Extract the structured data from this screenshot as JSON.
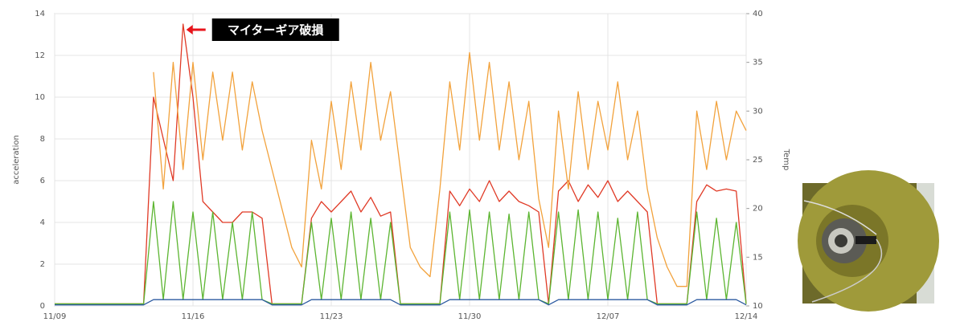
{
  "chart_data": {
    "type": "line",
    "y_label": "acceleration",
    "y2_label": "Temp",
    "annotation": "マイターギア破損",
    "annotation_color": "#e8141b",
    "annotation_x": 6.5,
    "annotation_y": 13.5,
    "grid": true,
    "x": [
      0,
      0.5,
      1,
      1.5,
      2,
      2.5,
      3,
      3.5,
      4,
      4.5,
      5,
      5.5,
      6,
      6.5,
      7,
      7.5,
      8,
      8.5,
      9,
      9.5,
      10,
      10.5,
      11,
      11.5,
      12,
      12.5,
      13,
      13.5,
      14,
      14.5,
      15,
      15.5,
      16,
      16.5,
      17,
      17.5,
      18,
      18.5,
      19,
      19.5,
      20,
      20.5,
      21,
      21.5,
      22,
      22.5,
      23,
      23.5,
      24,
      24.5,
      25,
      25.5,
      26,
      26.5,
      27,
      27.5,
      28,
      28.5,
      29,
      29.5,
      30,
      30.5,
      31,
      31.5,
      32,
      32.5,
      33,
      33.5,
      34,
      34.5,
      35
    ],
    "xlim": [
      0,
      35
    ],
    "xticks": [
      {
        "value": 0,
        "label": "11/09"
      },
      {
        "value": 7,
        "label": "11/16"
      },
      {
        "value": 14,
        "label": "11/23"
      },
      {
        "value": 21,
        "label": "11/30"
      },
      {
        "value": 28,
        "label": "12/07"
      },
      {
        "value": 35,
        "label": "12/14"
      }
    ],
    "ylim": [
      0,
      14
    ],
    "yticks": [
      0,
      2,
      4,
      6,
      8,
      10,
      12,
      14
    ],
    "y2lim": [
      10,
      40
    ],
    "y2ticks": [
      10,
      15,
      20,
      25,
      30,
      35,
      40
    ],
    "series": [
      {
        "color": "#e03a26",
        "values": [
          0.1,
          0.1,
          0.1,
          0.1,
          0.1,
          0.1,
          0.1,
          0.1,
          0.1,
          0.1,
          10,
          8,
          6,
          13.5,
          10,
          5,
          4.5,
          4,
          4,
          4.5,
          4.5,
          4.2,
          0.1,
          0.1,
          0.1,
          0.1,
          4.2,
          5,
          4.5,
          5,
          5.5,
          4.5,
          5.2,
          4.3,
          4.5,
          0.1,
          0.1,
          0.1,
          0.1,
          0.1,
          5.5,
          4.8,
          5.6,
          5,
          6,
          5,
          5.5,
          5,
          4.8,
          4.5,
          0.1,
          5.5,
          6,
          5,
          5.8,
          5.2,
          6,
          5,
          5.5,
          5,
          4.5,
          0.1,
          0.1,
          0.1,
          0.1,
          5,
          5.8,
          5.5,
          5.6,
          5.5,
          0.1
        ]
      },
      {
        "color": "#5cb531",
        "values": [
          0.1,
          0.1,
          0.1,
          0.1,
          0.1,
          0.1,
          0.1,
          0.1,
          0.1,
          0.1,
          5,
          0.3,
          5,
          0.3,
          4.5,
          0.3,
          4.5,
          0.3,
          4,
          0.3,
          4.5,
          0.3,
          0.1,
          0.1,
          0.1,
          0.1,
          4,
          0.3,
          4.2,
          0.3,
          4.5,
          0.3,
          4.2,
          0.3,
          4,
          0.1,
          0.1,
          0.1,
          0.1,
          0.1,
          4.5,
          0.3,
          4.6,
          0.3,
          4.5,
          0.3,
          4.4,
          0.3,
          4.5,
          0.3,
          0.1,
          4.5,
          0.3,
          4.6,
          0.3,
          4.5,
          0.3,
          4.2,
          0.3,
          4.5,
          0.3,
          0.1,
          0.1,
          0.1,
          0.1,
          4.5,
          0.3,
          4.2,
          0.3,
          4,
          0.1
        ]
      },
      {
        "color": "#2c5aa0",
        "values": [
          0.05,
          0.05,
          0.05,
          0.05,
          0.05,
          0.05,
          0.05,
          0.05,
          0.05,
          0.05,
          0.3,
          0.3,
          0.3,
          0.3,
          0.3,
          0.3,
          0.3,
          0.3,
          0.3,
          0.3,
          0.3,
          0.3,
          0.05,
          0.05,
          0.05,
          0.05,
          0.3,
          0.3,
          0.3,
          0.3,
          0.3,
          0.3,
          0.3,
          0.3,
          0.3,
          0.05,
          0.05,
          0.05,
          0.05,
          0.05,
          0.3,
          0.3,
          0.3,
          0.3,
          0.3,
          0.3,
          0.3,
          0.3,
          0.3,
          0.3,
          0.05,
          0.3,
          0.3,
          0.3,
          0.3,
          0.3,
          0.3,
          0.3,
          0.3,
          0.3,
          0.3,
          0.05,
          0.05,
          0.05,
          0.05,
          0.3,
          0.3,
          0.3,
          0.3,
          0.3,
          0.05
        ]
      },
      {
        "color": "#f2a23c",
        "axis": "y2",
        "values": [
          null,
          null,
          null,
          null,
          null,
          null,
          null,
          null,
          null,
          null,
          34,
          22,
          35,
          24,
          35,
          25,
          34,
          27,
          34,
          26,
          33,
          28,
          24,
          20,
          16,
          14,
          27,
          22,
          31,
          24,
          33,
          26,
          35,
          27,
          32,
          24,
          16,
          14,
          13,
          22,
          33,
          26,
          36,
          27,
          35,
          26,
          33,
          25,
          31,
          21,
          16,
          30,
          22,
          32,
          24,
          31,
          26,
          33,
          25,
          30,
          22,
          17,
          14,
          12,
          12,
          30,
          24,
          31,
          25,
          30,
          28
        ]
      }
    ]
  }
}
